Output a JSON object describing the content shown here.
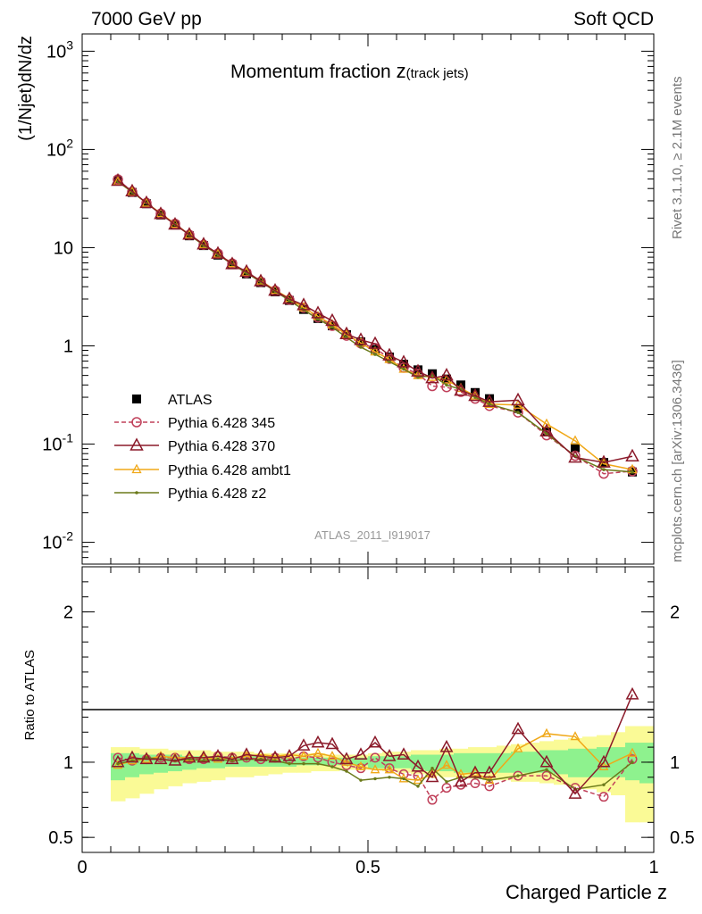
{
  "header": {
    "left": "7000 GeV pp",
    "right": "Soft QCD"
  },
  "side_labels": {
    "rivet": "Rivet 3.1.10, ≥ 2.1M events",
    "mcplots": "mcplots.cern.ch [arXiv:1306.3436]"
  },
  "watermark": "ATLAS_2011_I919017",
  "colors": {
    "atlas": "#000000",
    "p345": "#c0405a",
    "p370": "#8b1a2a",
    "ambt1": "#f0a818",
    "z2": "#6b7a1a",
    "band_inner": "#8ef28e",
    "band_outer": "#fafa96"
  },
  "chart_data": [
    {
      "type": "line",
      "title_main": "Momentum fraction ",
      "title_z": "z",
      "title_sub": "(track jets)",
      "ylabel": "(1/Njet)dN/dz",
      "yscale": "log",
      "xlim": [
        0,
        1
      ],
      "ylim": [
        0.006,
        1500
      ],
      "ytick_labels": [
        "10^-2",
        "10^-1",
        "1",
        "10",
        "10^2",
        "10^3"
      ],
      "x": [
        0.0625,
        0.0875,
        0.1125,
        0.1375,
        0.1625,
        0.1875,
        0.2125,
        0.2375,
        0.2625,
        0.2875,
        0.3125,
        0.3375,
        0.3625,
        0.3875,
        0.4125,
        0.4375,
        0.4625,
        0.4875,
        0.5125,
        0.5375,
        0.5625,
        0.5875,
        0.6125,
        0.6375,
        0.6625,
        0.6875,
        0.7125,
        0.7625,
        0.8125,
        0.8625,
        0.9125,
        0.9625
      ],
      "series": [
        {
          "name": "ATLAS",
          "key": "atlas",
          "values": [
            48,
            36.5,
            28,
            21.5,
            17,
            13.2,
            10.5,
            8.4,
            6.7,
            5.4,
            4.4,
            3.55,
            2.9,
            2.35,
            1.9,
            1.6,
            1.3,
            1.1,
            0.92,
            0.77,
            0.65,
            0.57,
            0.52,
            0.46,
            0.4,
            0.335,
            0.29,
            0.23,
            0.135,
            0.092,
            0.065,
            0.052
          ]
        },
        {
          "name": "Pythia 6.428 345",
          "key": "p345",
          "values": [
            49.5,
            37,
            28.5,
            22.2,
            17.5,
            13.5,
            10.7,
            8.7,
            6.9,
            5.55,
            4.5,
            3.65,
            2.95,
            2.45,
            1.95,
            1.6,
            1.27,
            1.06,
            0.95,
            0.74,
            0.6,
            0.52,
            0.39,
            0.38,
            0.34,
            0.29,
            0.245,
            0.21,
            0.123,
            0.076,
            0.05,
            0.053
          ]
        },
        {
          "name": "Pythia 6.428 370",
          "key": "p370",
          "values": [
            48,
            37.5,
            28.5,
            22,
            17.2,
            13.6,
            10.8,
            8.7,
            6.8,
            5.7,
            4.55,
            3.65,
            3.0,
            2.6,
            2.15,
            1.8,
            1.32,
            1.15,
            1.05,
            0.8,
            0.68,
            0.55,
            0.47,
            0.5,
            0.35,
            0.31,
            0.27,
            0.28,
            0.135,
            0.073,
            0.065,
            0.075
          ]
        },
        {
          "name": "Pythia 6.428 ambt1",
          "key": "ambt1",
          "values": [
            47,
            37,
            28.5,
            22.4,
            17.4,
            13.6,
            10.8,
            8.6,
            6.9,
            5.6,
            4.6,
            3.7,
            3.05,
            2.45,
            2.0,
            1.65,
            1.3,
            1.07,
            0.87,
            0.73,
            0.58,
            0.5,
            0.48,
            0.45,
            0.37,
            0.31,
            0.255,
            0.25,
            0.16,
            0.108,
            0.063,
            0.055
          ]
        },
        {
          "name": "Pythia 6.428 z2",
          "key": "z2",
          "values": [
            47,
            36.8,
            28.5,
            22,
            17.2,
            13.5,
            10.6,
            8.5,
            6.8,
            5.5,
            4.5,
            3.6,
            2.9,
            2.33,
            1.88,
            1.55,
            1.22,
            0.97,
            0.82,
            0.69,
            0.58,
            0.48,
            0.5,
            0.4,
            0.36,
            0.3,
            0.255,
            0.21,
            0.128,
            0.075,
            0.055,
            0.052
          ]
        }
      ],
      "legend_position": "middle-left"
    },
    {
      "type": "line",
      "ylabel": "Ratio to ATLAS",
      "xlabel": "Charged Particle z",
      "xlim": [
        0,
        1
      ],
      "ylim": [
        0.4,
        2.3
      ],
      "xtick_labels": [
        "0",
        "0.5",
        "1"
      ],
      "ytick_labels": [
        "0.5",
        "1",
        "2"
      ],
      "band_bins": [
        0.05,
        0.075,
        0.1,
        0.125,
        0.15,
        0.175,
        0.2,
        0.225,
        0.25,
        0.275,
        0.3,
        0.325,
        0.35,
        0.375,
        0.4,
        0.425,
        0.45,
        0.475,
        0.5,
        0.525,
        0.55,
        0.575,
        0.6,
        0.625,
        0.65,
        0.675,
        0.7,
        0.725,
        0.75,
        0.775,
        0.8,
        0.825,
        0.85,
        0.875,
        0.9,
        0.925,
        0.95,
        0.975,
        1.0
      ],
      "band_inner_lo": [
        0.88,
        0.9,
        0.92,
        0.93,
        0.94,
        0.95,
        0.96,
        0.96,
        0.97,
        0.97,
        0.97,
        0.97,
        0.97,
        0.98,
        0.98,
        0.98,
        0.98,
        0.98,
        0.96,
        0.96,
        0.96,
        0.95,
        0.94,
        0.94,
        0.93,
        0.93,
        0.93,
        0.93,
        0.93,
        0.93,
        0.93,
        0.92,
        0.9,
        0.9,
        0.9,
        0.9,
        0.88,
        0.86
      ],
      "band_inner_hi": [
        1.06,
        1.06,
        1.05,
        1.05,
        1.05,
        1.04,
        1.04,
        1.04,
        1.04,
        1.04,
        1.04,
        1.04,
        1.03,
        1.03,
        1.03,
        1.03,
        1.03,
        1.03,
        1.04,
        1.04,
        1.04,
        1.05,
        1.05,
        1.05,
        1.06,
        1.06,
        1.06,
        1.06,
        1.07,
        1.07,
        1.08,
        1.08,
        1.09,
        1.09,
        1.1,
        1.1,
        1.13,
        1.13
      ],
      "band_outer_lo": [
        0.74,
        0.76,
        0.79,
        0.82,
        0.84,
        0.86,
        0.87,
        0.88,
        0.9,
        0.9,
        0.91,
        0.92,
        0.93,
        0.93,
        0.94,
        0.94,
        0.95,
        0.95,
        0.95,
        0.94,
        0.93,
        0.92,
        0.91,
        0.9,
        0.9,
        0.89,
        0.88,
        0.88,
        0.87,
        0.87,
        0.86,
        0.85,
        0.84,
        0.82,
        0.8,
        0.78,
        0.6,
        0.6
      ],
      "band_outer_hi": [
        1.1,
        1.1,
        1.09,
        1.09,
        1.08,
        1.08,
        1.08,
        1.07,
        1.07,
        1.07,
        1.06,
        1.06,
        1.06,
        1.06,
        1.06,
        1.05,
        1.05,
        1.05,
        1.06,
        1.07,
        1.07,
        1.08,
        1.08,
        1.09,
        1.09,
        1.1,
        1.1,
        1.11,
        1.12,
        1.13,
        1.14,
        1.15,
        1.16,
        1.17,
        1.18,
        1.2,
        1.24,
        1.24
      ],
      "x": [
        0.0625,
        0.0875,
        0.1125,
        0.1375,
        0.1625,
        0.1875,
        0.2125,
        0.2375,
        0.2625,
        0.2875,
        0.3125,
        0.3375,
        0.3625,
        0.3875,
        0.4125,
        0.4375,
        0.4625,
        0.4875,
        0.5125,
        0.5375,
        0.5625,
        0.5875,
        0.6125,
        0.6375,
        0.6625,
        0.6875,
        0.7125,
        0.7625,
        0.8125,
        0.8625,
        0.9125,
        0.9625
      ],
      "series": [
        {
          "name": "Pythia 6.428 345",
          "key": "p345",
          "values": [
            1.03,
            1.01,
            1.02,
            1.03,
            1.03,
            1.02,
            1.02,
            1.04,
            1.03,
            1.03,
            1.02,
            1.03,
            1.02,
            1.04,
            1.03,
            1.0,
            0.98,
            0.96,
            1.03,
            0.96,
            0.92,
            0.91,
            0.75,
            0.83,
            0.85,
            0.86,
            0.84,
            0.91,
            0.91,
            0.83,
            0.77,
            1.02
          ]
        },
        {
          "name": "Pythia 6.428 370",
          "key": "p370",
          "values": [
            1.0,
            1.03,
            1.02,
            1.02,
            1.01,
            1.03,
            1.03,
            1.04,
            1.02,
            1.05,
            1.04,
            1.03,
            1.04,
            1.11,
            1.13,
            1.12,
            1.02,
            1.05,
            1.13,
            1.04,
            1.05,
            0.97,
            0.9,
            1.1,
            0.87,
            0.93,
            0.93,
            1.22,
            1.0,
            0.79,
            1.0,
            1.45
          ]
        },
        {
          "name": "Pythia 6.428 ambt1",
          "key": "ambt1",
          "values": [
            0.98,
            1.01,
            1.02,
            1.04,
            1.03,
            1.03,
            1.03,
            1.02,
            1.03,
            1.04,
            1.05,
            1.04,
            1.05,
            1.04,
            1.06,
            1.04,
            1.0,
            0.97,
            0.95,
            0.95,
            0.89,
            0.88,
            0.92,
            0.98,
            0.92,
            0.93,
            0.88,
            1.09,
            1.19,
            1.17,
            0.97,
            1.06
          ]
        },
        {
          "name": "Pythia 6.428 z2",
          "key": "z2",
          "values": [
            0.99,
            1.01,
            1.03,
            1.02,
            1.01,
            1.02,
            1.01,
            1.02,
            1.01,
            1.02,
            1.02,
            1.01,
            0.99,
            0.99,
            0.99,
            0.97,
            0.94,
            0.88,
            0.89,
            0.9,
            0.89,
            0.84,
            0.96,
            0.87,
            0.9,
            0.9,
            0.88,
            0.91,
            0.95,
            0.82,
            0.85,
            1.0
          ]
        }
      ]
    }
  ]
}
